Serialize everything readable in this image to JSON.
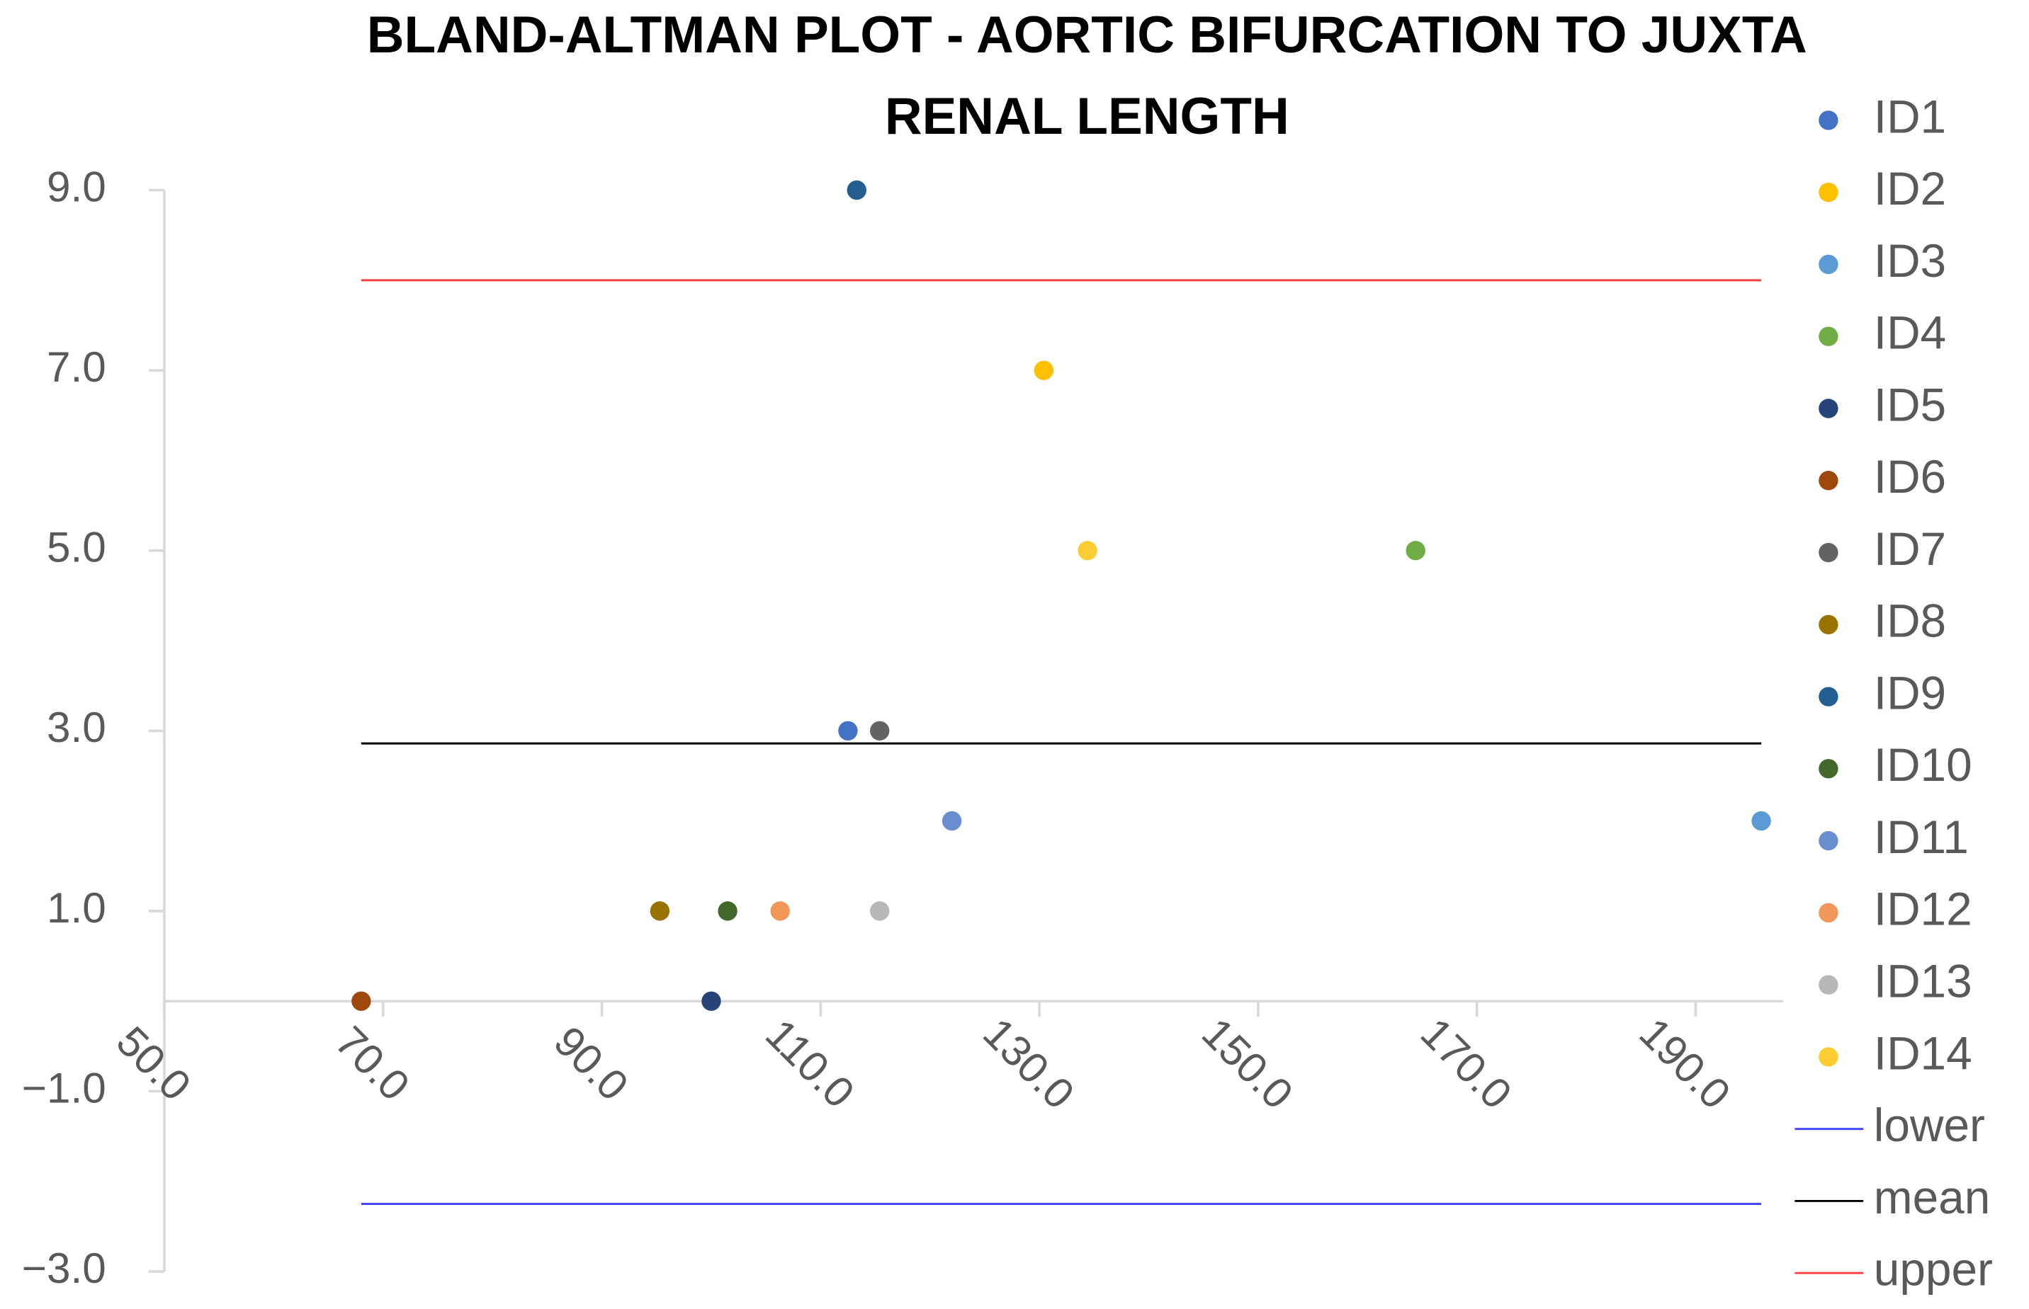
{
  "chart_data": {
    "type": "scatter",
    "title": [
      "BLAND-ALTMAN PLOT - AORTIC BIFURCATION TO JUXTA",
      "RENAL LENGTH"
    ],
    "xlim": [
      50,
      198
    ],
    "xticks": [
      {
        "value": 50,
        "label": "50.0"
      },
      {
        "value": 70,
        "label": "70.0"
      },
      {
        "value": 90,
        "label": "90.0"
      },
      {
        "value": 110,
        "label": "110.0"
      },
      {
        "value": 130,
        "label": "130.0"
      },
      {
        "value": 150,
        "label": "150.0"
      },
      {
        "value": 170,
        "label": "170.0"
      },
      {
        "value": 190,
        "label": "190.0"
      }
    ],
    "ylim": [
      -3,
      9
    ],
    "yticks": [
      {
        "value": -3,
        "label": "−3.0"
      },
      {
        "value": -1,
        "label": "−1.0"
      },
      {
        "value": 1,
        "label": "1.0"
      },
      {
        "value": 3,
        "label": "3.0"
      },
      {
        "value": 5,
        "label": "5.0"
      },
      {
        "value": 7,
        "label": "7.0"
      },
      {
        "value": 9,
        "label": "9.0"
      }
    ],
    "grid": false,
    "legend": "right",
    "series": [
      {
        "name": "ID1",
        "color": "#4472C4",
        "style": "point",
        "x": [
          112.5
        ],
        "values": [
          3
        ]
      },
      {
        "name": "ID2",
        "color": "#FFC000",
        "style": "point",
        "x": [
          130.4
        ],
        "values": [
          7
        ]
      },
      {
        "name": "ID3",
        "color": "#5B9BD5",
        "style": "point",
        "x": [
          196
        ],
        "values": [
          2
        ]
      },
      {
        "name": "ID4",
        "color": "#70AD47",
        "style": "point",
        "x": [
          164.4
        ],
        "values": [
          5
        ]
      },
      {
        "name": "ID5",
        "color": "#264478",
        "style": "point",
        "x": [
          100
        ],
        "values": [
          0
        ]
      },
      {
        "name": "ID6",
        "color": "#9E480E",
        "style": "point",
        "x": [
          68
        ],
        "values": [
          0
        ]
      },
      {
        "name": "ID7",
        "color": "#636363",
        "style": "point",
        "x": [
          115.4
        ],
        "values": [
          3
        ]
      },
      {
        "name": "ID8",
        "color": "#997300",
        "style": "point",
        "x": [
          95.3
        ],
        "values": [
          1
        ]
      },
      {
        "name": "ID9",
        "color": "#255E91",
        "style": "point",
        "x": [
          113.3
        ],
        "values": [
          9
        ]
      },
      {
        "name": "ID10",
        "color": "#43682B",
        "style": "point",
        "x": [
          101.5
        ],
        "values": [
          1
        ]
      },
      {
        "name": "ID11",
        "color": "#698ED0",
        "style": "point",
        "x": [
          122
        ],
        "values": [
          2
        ]
      },
      {
        "name": "ID12",
        "color": "#F1975A",
        "style": "point",
        "x": [
          106.3
        ],
        "values": [
          1
        ]
      },
      {
        "name": "ID13",
        "color": "#B7B7B7",
        "style": "point",
        "x": [
          115.4
        ],
        "values": [
          1
        ]
      },
      {
        "name": "ID14",
        "color": "#FFCD33",
        "style": "point",
        "x": [
          134.4
        ],
        "values": [
          5
        ]
      },
      {
        "name": "lower",
        "color": "#4040FF",
        "style": "line",
        "x": [
          68,
          196
        ],
        "values": [
          -2.25,
          -2.25
        ]
      },
      {
        "name": "mean",
        "color": "#000000",
        "style": "line",
        "x": [
          68,
          196
        ],
        "values": [
          2.86,
          2.86
        ]
      },
      {
        "name": "upper",
        "color": "#FF4040",
        "style": "line",
        "x": [
          68,
          196
        ],
        "values": [
          8.0,
          8.0
        ]
      }
    ]
  }
}
